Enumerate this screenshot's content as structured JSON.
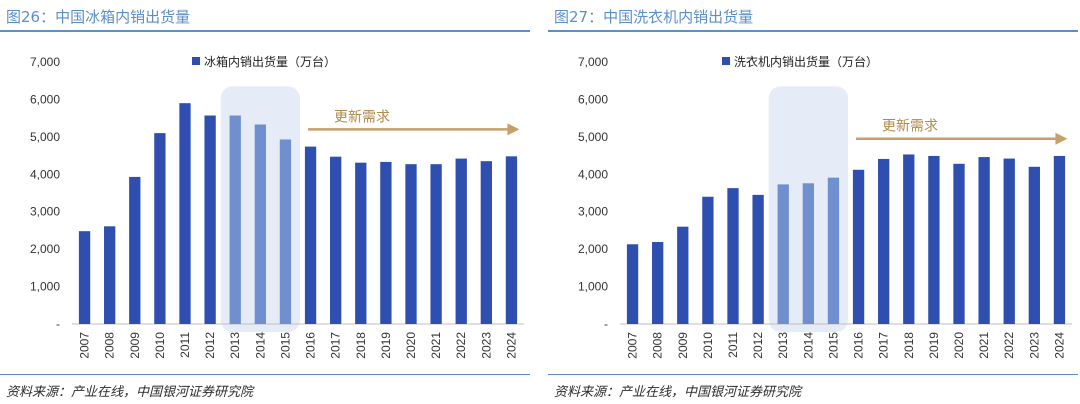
{
  "colors": {
    "bar": "#2e4fb0",
    "bar_highlight": "#6f8fcf",
    "highlight_bg": "#e6ebf8",
    "arrow": "#c6a06a",
    "accent": "#5b8fc9"
  },
  "left": {
    "title": "图26：中国冰箱内销出货量",
    "source": "资料来源：产业在线，中国银河证券研究院",
    "chart_data": {
      "type": "bar",
      "title": "图26：中国冰箱内销出货量",
      "legend": "冰箱内销出货量（万台）",
      "categories": [
        "2007",
        "2008",
        "2009",
        "2010",
        "2011",
        "2012",
        "2013",
        "2014",
        "2015",
        "2016",
        "2017",
        "2018",
        "2019",
        "2020",
        "2021",
        "2022",
        "2023",
        "2024"
      ],
      "values": [
        2480,
        2610,
        3930,
        5100,
        5900,
        5570,
        5570,
        5330,
        4930,
        4740,
        4470,
        4310,
        4330,
        4270,
        4270,
        4420,
        4350,
        4480
      ],
      "highlight": [
        "2013",
        "2014",
        "2015"
      ],
      "yticks": [
        "-",
        "1,000",
        "2,000",
        "3,000",
        "4,000",
        "5,000",
        "6,000",
        "7,000"
      ],
      "ylim": [
        0,
        7000
      ],
      "annotation": "更新需求",
      "annotation_from": "2016",
      "annotation_to": "2024",
      "annotation_level": 5200
    }
  },
  "right": {
    "title": "图27：中国洗衣机内销出货量",
    "source": "资料来源：产业在线，中国银河证券研究院",
    "chart_data": {
      "type": "bar",
      "title": "图27：中国洗衣机内销出货量",
      "legend": "洗衣机内销出货量（万台）",
      "categories": [
        "2007",
        "2008",
        "2009",
        "2010",
        "2011",
        "2012",
        "2013",
        "2014",
        "2015",
        "2016",
        "2017",
        "2018",
        "2019",
        "2020",
        "2021",
        "2022",
        "2023",
        "2024"
      ],
      "values": [
        2130,
        2190,
        2600,
        3400,
        3630,
        3450,
        3730,
        3760,
        3910,
        4120,
        4410,
        4530,
        4490,
        4280,
        4460,
        4420,
        4200,
        4490
      ],
      "highlight": [
        "2013",
        "2014",
        "2015"
      ],
      "yticks": [
        "-",
        "1,000",
        "2,000",
        "3,000",
        "4,000",
        "5,000",
        "6,000",
        "7,000"
      ],
      "ylim": [
        0,
        7000
      ],
      "annotation": "更新需求",
      "annotation_from": "2016",
      "annotation_to": "2024",
      "annotation_level": 4950
    }
  }
}
